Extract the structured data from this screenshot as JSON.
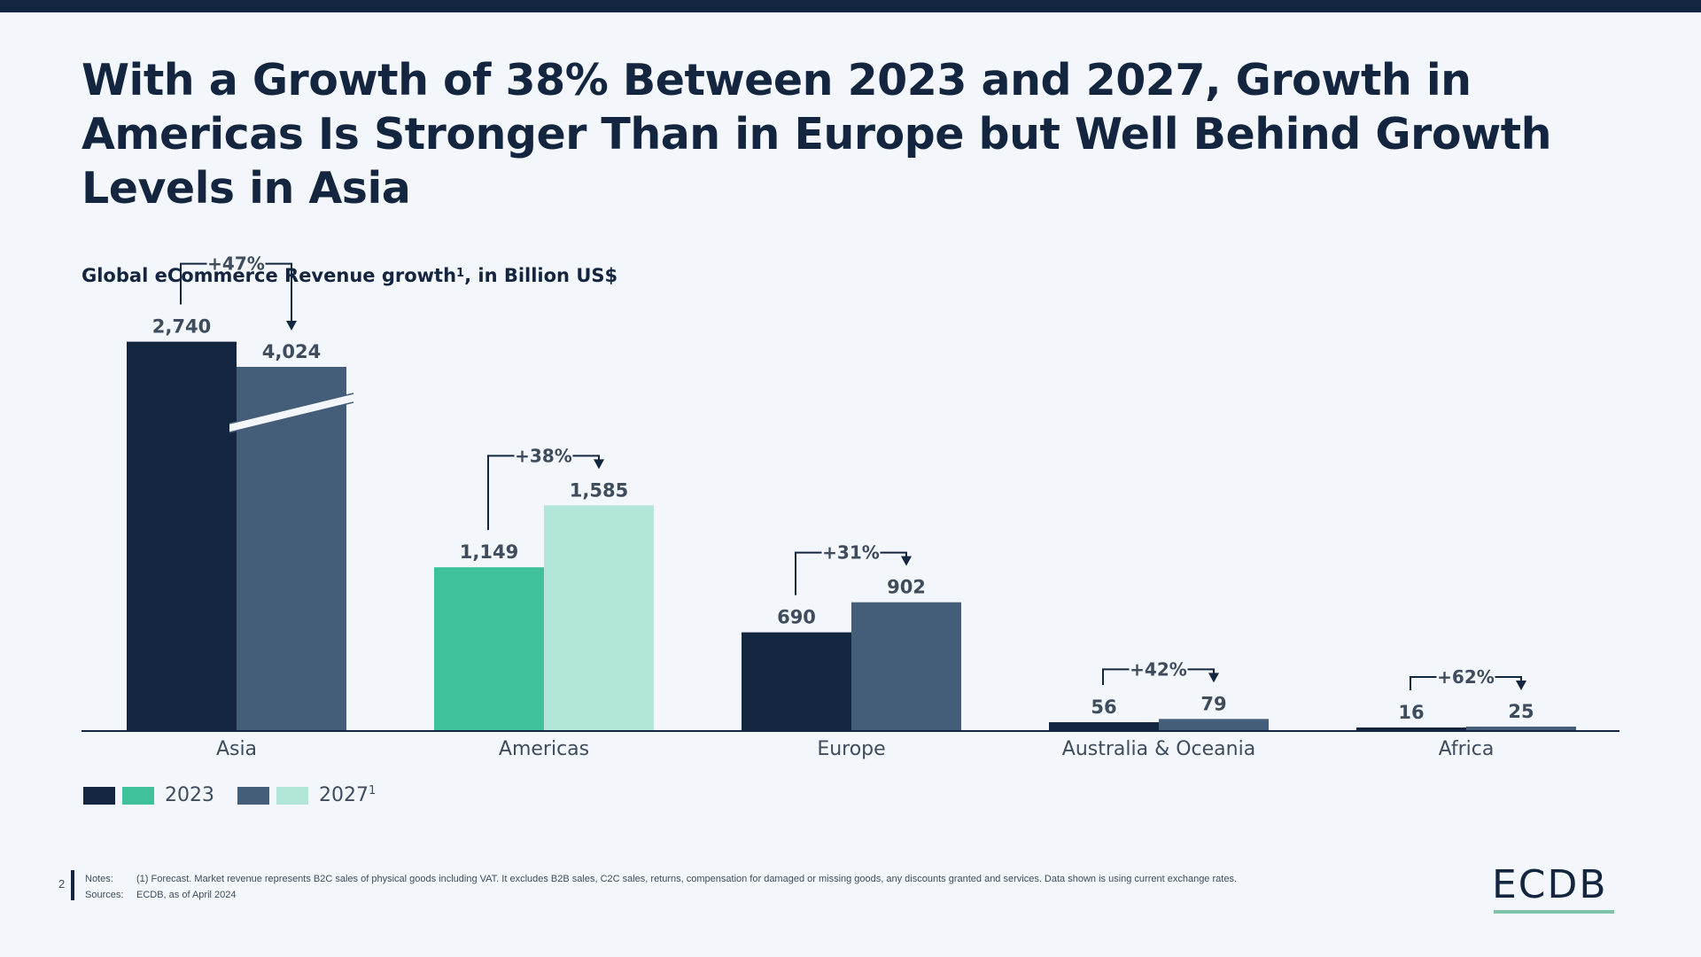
{
  "headline": "With a Growth of 38% Between 2023 and 2027, Growth in Americas Is Stronger Than in Europe but Well Behind Growth Levels in Asia",
  "chart_title": "Global eCommerce Revenue growth",
  "chart_title_sup": "1",
  "chart_title_suffix": ", in Billion US$",
  "legend": {
    "label_2023": "2023",
    "label_2027": "2027",
    "label_2027_sup": "1"
  },
  "notes": {
    "page_number": "2",
    "notes_key": "Notes:",
    "notes_text": "(1) Forecast. Market revenue represents B2C sales of physical goods including VAT. It excludes B2B sales, C2C sales, returns, compensation for damaged or missing goods, any discounts granted and services. Data shown is using current exchange rates.",
    "sources_key": "Sources:",
    "sources_text": "ECDB, as of April 2024"
  },
  "logo_text": "ECDB",
  "colors": {
    "dark_navy": "#13253f",
    "slate_blue": "#445d78",
    "teal": "#3fc19c",
    "light_teal": "#b1e6d9",
    "text": "#3e4c5e"
  },
  "chart_data": {
    "type": "bar",
    "title": "Global eCommerce Revenue growth¹, in Billion US$",
    "categories": [
      "Asia",
      "Americas",
      "Europe",
      "Australia & Oceania",
      "Africa"
    ],
    "series": [
      {
        "name": "2023",
        "values": [
          2740,
          1149,
          690,
          56,
          16
        ]
      },
      {
        "name": "2027¹",
        "values": [
          4024,
          1585,
          902,
          79,
          25
        ]
      }
    ],
    "value_labels_2023": [
      "2,740",
      "1,149",
      "690",
      "56",
      "16"
    ],
    "value_labels_2027": [
      "4,024",
      "1,585",
      "902",
      "79",
      "25"
    ],
    "growth_labels": [
      "+47%",
      "+38%",
      "+31%",
      "+42%",
      "+62%"
    ],
    "highlight_category": "Americas",
    "axis_break": "Asia 2027 bar (broken axis)",
    "ylim": [
      0,
      2000
    ],
    "grid": false,
    "legend_position": "bottom-left"
  }
}
